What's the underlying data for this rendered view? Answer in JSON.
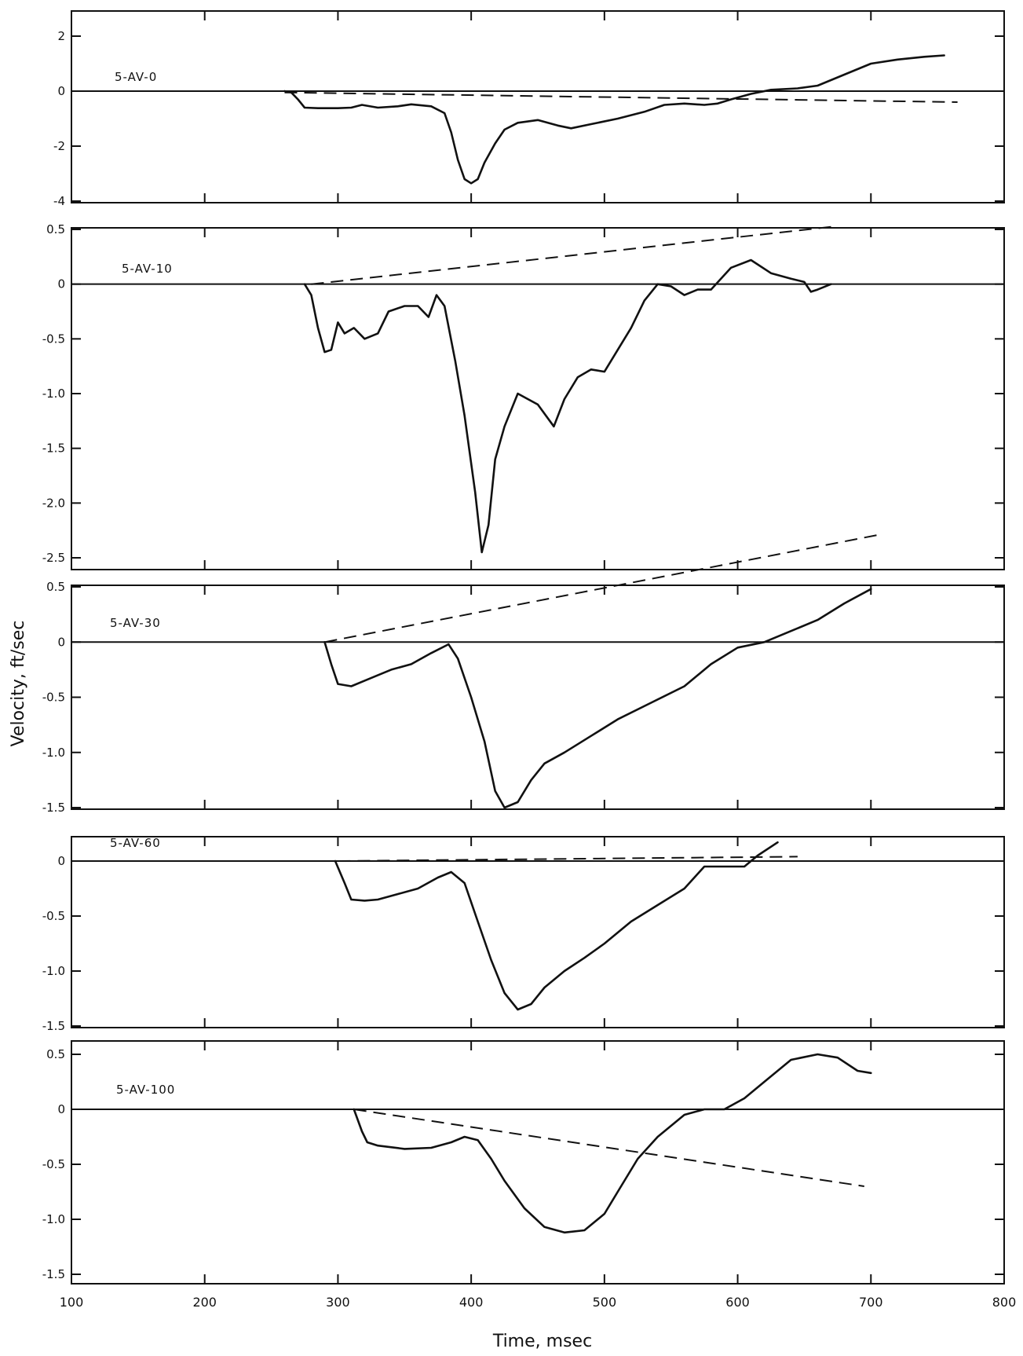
{
  "chart_data": {
    "type": "line",
    "layout": "stacked-panels",
    "xlabel": "Time, msec",
    "ylabel": "Velocity, ft/sec",
    "xlim": [
      100,
      800
    ],
    "xticks": [
      100,
      200,
      300,
      400,
      500,
      600,
      700,
      800
    ],
    "grid": false,
    "legend": "none",
    "panels": [
      {
        "label": "5-AV-0",
        "ylim": [
          -4,
          3
        ],
        "yticks": [
          2,
          0,
          -2,
          -4
        ],
        "ytick_labels": [
          "2",
          "0",
          "-2",
          "-4"
        ],
        "series": [
          {
            "style": "solid",
            "points": [
              [
                260,
                0
              ],
              [
                265,
                -0.05
              ],
              [
                270,
                -0.3
              ],
              [
                275,
                -0.6
              ],
              [
                285,
                -0.62
              ],
              [
                300,
                -0.62
              ],
              [
                310,
                -0.6
              ],
              [
                318,
                -0.5
              ],
              [
                330,
                -0.6
              ],
              [
                345,
                -0.55
              ],
              [
                355,
                -0.48
              ],
              [
                370,
                -0.55
              ],
              [
                380,
                -0.8
              ],
              [
                385,
                -1.5
              ],
              [
                390,
                -2.5
              ],
              [
                395,
                -3.2
              ],
              [
                400,
                -3.35
              ],
              [
                405,
                -3.2
              ],
              [
                410,
                -2.6
              ],
              [
                418,
                -1.9
              ],
              [
                425,
                -1.4
              ],
              [
                435,
                -1.15
              ],
              [
                450,
                -1.05
              ],
              [
                465,
                -1.25
              ],
              [
                475,
                -1.35
              ],
              [
                490,
                -1.2
              ],
              [
                510,
                -1.0
              ],
              [
                530,
                -0.75
              ],
              [
                545,
                -0.5
              ],
              [
                560,
                -0.45
              ],
              [
                575,
                -0.5
              ],
              [
                585,
                -0.45
              ],
              [
                595,
                -0.3
              ],
              [
                610,
                -0.1
              ],
              [
                625,
                0.05
              ],
              [
                645,
                0.1
              ],
              [
                660,
                0.2
              ],
              [
                680,
                0.6
              ],
              [
                700,
                1.0
              ],
              [
                720,
                1.15
              ],
              [
                740,
                1.25
              ],
              [
                755,
                1.3
              ]
            ]
          },
          {
            "style": "dashed",
            "points": [
              [
                260,
                -0.05
              ],
              [
                765,
                -0.4
              ]
            ]
          }
        ]
      },
      {
        "label": "5-AV-10",
        "ylim": [
          -2.5,
          0.5
        ],
        "yticks": [
          0.5,
          0,
          -0.5,
          -1.0,
          -1.5,
          -2.0,
          -2.5
        ],
        "ytick_labels": [
          "0.5",
          "0",
          "-0.5",
          "-1.0",
          "-1.5",
          "-2.0",
          "-2.5"
        ],
        "series": [
          {
            "style": "solid",
            "points": [
              [
                275,
                0
              ],
              [
                280,
                -0.1
              ],
              [
                285,
                -0.4
              ],
              [
                290,
                -0.62
              ],
              [
                295,
                -0.6
              ],
              [
                300,
                -0.35
              ],
              [
                305,
                -0.45
              ],
              [
                312,
                -0.4
              ],
              [
                320,
                -0.5
              ],
              [
                330,
                -0.45
              ],
              [
                338,
                -0.25
              ],
              [
                350,
                -0.2
              ],
              [
                360,
                -0.2
              ],
              [
                368,
                -0.3
              ],
              [
                374,
                -0.1
              ],
              [
                380,
                -0.2
              ],
              [
                388,
                -0.7
              ],
              [
                395,
                -1.2
              ],
              [
                403,
                -1.9
              ],
              [
                408,
                -2.45
              ],
              [
                413,
                -2.2
              ],
              [
                418,
                -1.6
              ],
              [
                425,
                -1.3
              ],
              [
                435,
                -1.0
              ],
              [
                450,
                -1.1
              ],
              [
                462,
                -1.3
              ],
              [
                470,
                -1.05
              ],
              [
                480,
                -0.85
              ],
              [
                490,
                -0.78
              ],
              [
                500,
                -0.8
              ],
              [
                510,
                -0.6
              ],
              [
                520,
                -0.4
              ],
              [
                530,
                -0.15
              ],
              [
                540,
                0.0
              ],
              [
                550,
                -0.02
              ],
              [
                560,
                -0.1
              ],
              [
                570,
                -0.05
              ],
              [
                580,
                -0.05
              ],
              [
                595,
                0.15
              ],
              [
                610,
                0.22
              ],
              [
                625,
                0.1
              ],
              [
                640,
                0.05
              ],
              [
                650,
                0.02
              ],
              [
                655,
                -0.07
              ],
              [
                660,
                -0.05
              ],
              [
                670,
                0
              ]
            ]
          },
          {
            "style": "dashed",
            "points": [
              [
                280,
                0
              ],
              [
                675,
                0.53
              ]
            ]
          }
        ]
      },
      {
        "label": "5-AV-30",
        "ylim": [
          -1.5,
          0.5
        ],
        "yticks": [
          0.5,
          0,
          -0.5,
          -1.0,
          -1.5
        ],
        "ytick_labels": [
          "0.5",
          "0",
          "-0.5",
          "-1.0",
          "-1.5"
        ],
        "series": [
          {
            "style": "solid",
            "points": [
              [
                290,
                0
              ],
              [
                295,
                -0.2
              ],
              [
                300,
                -0.38
              ],
              [
                310,
                -0.4
              ],
              [
                320,
                -0.35
              ],
              [
                330,
                -0.3
              ],
              [
                340,
                -0.25
              ],
              [
                355,
                -0.2
              ],
              [
                370,
                -0.1
              ],
              [
                383,
                -0.02
              ],
              [
                390,
                -0.15
              ],
              [
                400,
                -0.5
              ],
              [
                410,
                -0.9
              ],
              [
                418,
                -1.35
              ],
              [
                425,
                -1.5
              ],
              [
                435,
                -1.45
              ],
              [
                445,
                -1.25
              ],
              [
                455,
                -1.1
              ],
              [
                470,
                -1.0
              ],
              [
                490,
                -0.85
              ],
              [
                510,
                -0.7
              ],
              [
                535,
                -0.55
              ],
              [
                560,
                -0.4
              ],
              [
                580,
                -0.2
              ],
              [
                600,
                -0.05
              ],
              [
                620,
                0.0
              ],
              [
                640,
                0.1
              ],
              [
                660,
                0.2
              ],
              [
                680,
                0.35
              ],
              [
                700,
                0.48
              ]
            ]
          },
          {
            "style": "dashed",
            "points": [
              [
                290,
                0
              ],
              [
                705,
                0.97
              ]
            ]
          }
        ]
      },
      {
        "label": "5-AV-60",
        "ylim": [
          -1.5,
          0.2
        ],
        "yticks": [
          0,
          -0.5,
          -1.0,
          -1.5
        ],
        "ytick_labels": [
          "0",
          "-0.5",
          "-1.0",
          "-1.5"
        ],
        "series": [
          {
            "style": "solid",
            "points": [
              [
                298,
                0
              ],
              [
                305,
                -0.2
              ],
              [
                310,
                -0.35
              ],
              [
                320,
                -0.36
              ],
              [
                330,
                -0.35
              ],
              [
                345,
                -0.3
              ],
              [
                360,
                -0.25
              ],
              [
                375,
                -0.15
              ],
              [
                385,
                -0.1
              ],
              [
                395,
                -0.2
              ],
              [
                405,
                -0.55
              ],
              [
                415,
                -0.9
              ],
              [
                425,
                -1.2
              ],
              [
                435,
                -1.35
              ],
              [
                445,
                -1.3
              ],
              [
                455,
                -1.15
              ],
              [
                470,
                -1.0
              ],
              [
                485,
                -0.88
              ],
              [
                500,
                -0.75
              ],
              [
                520,
                -0.55
              ],
              [
                540,
                -0.4
              ],
              [
                560,
                -0.25
              ],
              [
                575,
                -0.05
              ],
              [
                595,
                -0.05
              ],
              [
                605,
                -0.05
              ],
              [
                615,
                0.05
              ],
              [
                630,
                0.17
              ]
            ]
          },
          {
            "style": "dashed",
            "points": [
              [
                300,
                0
              ],
              [
                645,
                0.04
              ]
            ]
          }
        ]
      },
      {
        "label": "5-AV-100",
        "ylim": [
          -1.6,
          0.6
        ],
        "yticks": [
          0.5,
          0,
          -0.5,
          -1.0,
          -1.5
        ],
        "ytick_labels": [
          "0.5",
          "0",
          "-0.5",
          "-1.0",
          "-1.5"
        ],
        "series": [
          {
            "style": "solid",
            "points": [
              [
                312,
                0
              ],
              [
                318,
                -0.2
              ],
              [
                322,
                -0.3
              ],
              [
                330,
                -0.33
              ],
              [
                350,
                -0.36
              ],
              [
                370,
                -0.35
              ],
              [
                385,
                -0.3
              ],
              [
                395,
                -0.25
              ],
              [
                405,
                -0.28
              ],
              [
                415,
                -0.45
              ],
              [
                425,
                -0.65
              ],
              [
                440,
                -0.9
              ],
              [
                455,
                -1.07
              ],
              [
                470,
                -1.12
              ],
              [
                485,
                -1.1
              ],
              [
                500,
                -0.95
              ],
              [
                510,
                -0.75
              ],
              [
                525,
                -0.45
              ],
              [
                540,
                -0.25
              ],
              [
                560,
                -0.05
              ],
              [
                575,
                0.0
              ],
              [
                590,
                0.0
              ],
              [
                605,
                0.1
              ],
              [
                620,
                0.25
              ],
              [
                640,
                0.45
              ],
              [
                660,
                0.5
              ],
              [
                675,
                0.47
              ],
              [
                690,
                0.35
              ],
              [
                700,
                0.33
              ]
            ]
          },
          {
            "style": "dashed",
            "points": [
              [
                312,
                0
              ],
              [
                695,
                -0.7
              ]
            ]
          }
        ]
      }
    ]
  }
}
